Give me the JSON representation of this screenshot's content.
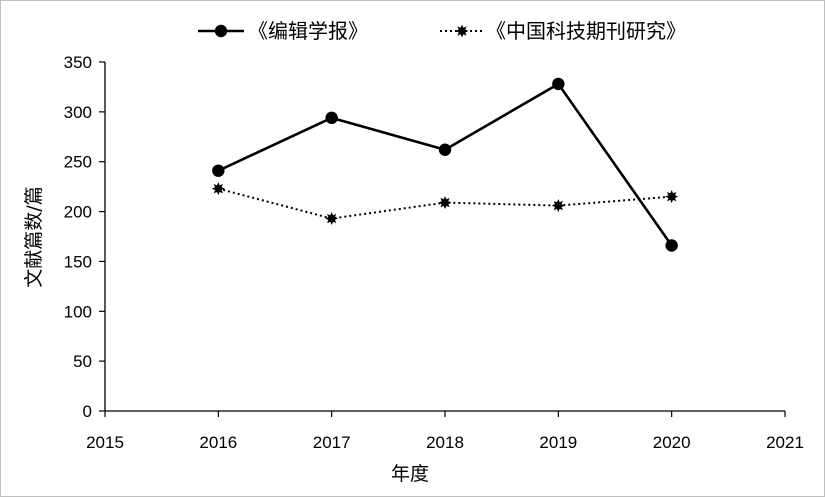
{
  "chart_data": {
    "type": "line",
    "xlabel": "年度",
    "ylabel": "文献篇数/篇",
    "xlim": [
      2015,
      2021
    ],
    "ylim": [
      0,
      350
    ],
    "xticks": [
      "2015",
      "2016",
      "2017",
      "2018",
      "2019",
      "2020",
      "2021"
    ],
    "yticks": [
      "0",
      "50",
      "100",
      "150",
      "200",
      "250",
      "300",
      "350"
    ],
    "legend_position": "top-center",
    "grid": false,
    "series": [
      {
        "name": "《编辑学报》",
        "line_style": "solid",
        "marker": "circle",
        "color": "#000000",
        "x": [
          2016,
          2017,
          2018,
          2019,
          2020
        ],
        "values": [
          241,
          294,
          262,
          328,
          166
        ]
      },
      {
        "name": "《中国科技期刊研究》",
        "line_style": "dotted",
        "marker": "star-burst",
        "color": "#000000",
        "x": [
          2016,
          2017,
          2018,
          2019,
          2020
        ],
        "values": [
          223,
          193,
          209,
          206,
          215
        ]
      }
    ]
  }
}
